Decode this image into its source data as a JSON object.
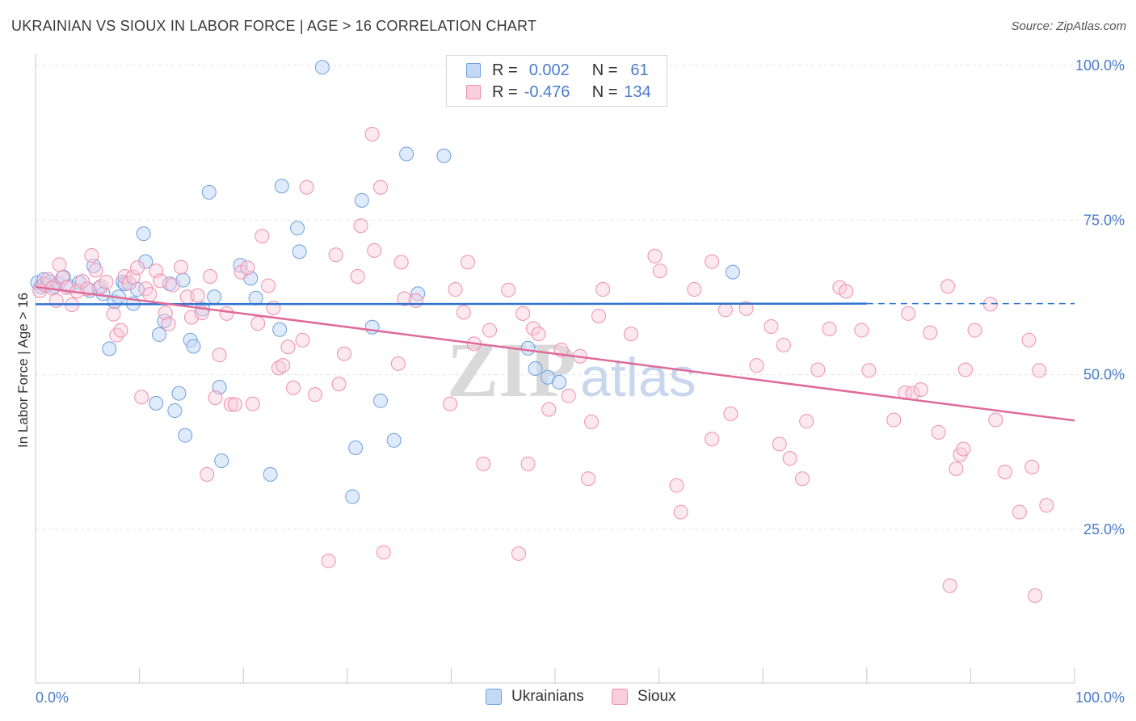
{
  "header": {
    "title": "UKRAINIAN VS SIOUX IN LABOR FORCE | AGE > 16 CORRELATION CHART",
    "source": "Source: ZipAtlas.com"
  },
  "watermark": {
    "zip": "ZIP",
    "atlas": "atlas"
  },
  "legend": {
    "rows": [
      {
        "r_label": "R =",
        "r_value": "0.002",
        "n_label": "N =",
        "n_value": "61",
        "color": "#6e9fe0"
      },
      {
        "r_label": "R =",
        "r_value": "-0.476",
        "n_label": "N =",
        "n_value": "134",
        "color": "#ee8eb0"
      }
    ]
  },
  "bottom_legend": {
    "items": [
      "Ukrainians",
      "Sioux"
    ]
  },
  "chart_data": {
    "type": "scatter",
    "title": "UKRAINIAN VS SIOUX IN LABOR FORCE | AGE > 16 CORRELATION CHART",
    "xlabel": "",
    "ylabel": "In Labor Force | Age > 16",
    "xlim": [
      0,
      100
    ],
    "ylim": [
      0,
      105
    ],
    "x_tick_labels": [
      "0.0%",
      "100.0%"
    ],
    "y_tick_labels": [
      "25.0%",
      "50.0%",
      "75.0%",
      "100.0%"
    ],
    "y_ticks": [
      25,
      50,
      75,
      100
    ],
    "grid": true,
    "legend_position": "top-center",
    "series": [
      {
        "name": "Ukrainians",
        "color": "#6e9fe0",
        "trend": {
          "x": [
            0,
            80
          ],
          "y": [
            61.4,
            61.5
          ],
          "dashed_extension_to": 100
        },
        "points": [
          [
            0.2,
            64.9
          ],
          [
            0.5,
            64.2
          ],
          [
            0.8,
            65.4
          ],
          [
            1.1,
            64.5
          ],
          [
            1.4,
            65.0
          ],
          [
            1.8,
            64.3
          ],
          [
            2.2,
            64.8
          ],
          [
            2.7,
            65.8
          ],
          [
            3.2,
            64.3
          ],
          [
            4.2,
            64.9
          ],
          [
            5.2,
            63.6
          ],
          [
            5.6,
            67.6
          ],
          [
            6.1,
            64.0
          ],
          [
            6.5,
            63.1
          ],
          [
            7.1,
            54.2
          ],
          [
            7.6,
            61.8
          ],
          [
            8.0,
            62.6
          ],
          [
            8.4,
            65.0
          ],
          [
            8.6,
            64.7
          ],
          [
            9.4,
            61.5
          ],
          [
            9.8,
            63.8
          ],
          [
            10.4,
            72.8
          ],
          [
            10.6,
            68.3
          ],
          [
            11.6,
            45.4
          ],
          [
            11.9,
            56.5
          ],
          [
            12.4,
            58.7
          ],
          [
            12.9,
            64.7
          ],
          [
            13.4,
            44.2
          ],
          [
            13.8,
            47.0
          ],
          [
            14.4,
            40.2
          ],
          [
            14.9,
            55.6
          ],
          [
            14.2,
            65.3
          ],
          [
            15.2,
            54.6
          ],
          [
            16.1,
            60.6
          ],
          [
            16.7,
            79.5
          ],
          [
            17.2,
            62.6
          ],
          [
            17.7,
            48.0
          ],
          [
            17.9,
            36.1
          ],
          [
            19.7,
            67.7
          ],
          [
            20.7,
            65.6
          ],
          [
            21.2,
            62.4
          ],
          [
            22.6,
            33.9
          ],
          [
            23.7,
            80.5
          ],
          [
            23.5,
            57.3
          ],
          [
            25.2,
            73.7
          ],
          [
            25.4,
            69.9
          ],
          [
            27.6,
            99.7
          ],
          [
            30.5,
            30.3
          ],
          [
            30.8,
            38.2
          ],
          [
            31.4,
            78.2
          ],
          [
            32.4,
            57.7
          ],
          [
            33.2,
            45.8
          ],
          [
            34.5,
            39.4
          ],
          [
            35.7,
            85.7
          ],
          [
            36.8,
            63.1
          ],
          [
            39.3,
            85.4
          ],
          [
            47.4,
            54.3
          ],
          [
            48.1,
            51.0
          ],
          [
            49.3,
            49.6
          ],
          [
            50.4,
            48.8
          ],
          [
            67.1,
            66.6
          ]
        ]
      },
      {
        "name": "Sioux",
        "color": "#ee8eb0",
        "trend": {
          "x": [
            0,
            100
          ],
          "y": [
            64.2,
            42.6
          ]
        },
        "points": [
          [
            0.4,
            63.6
          ],
          [
            0.8,
            64.6
          ],
          [
            1.2,
            65.4
          ],
          [
            1.6,
            64.0
          ],
          [
            2.0,
            62.0
          ],
          [
            2.3,
            67.8
          ],
          [
            2.6,
            65.7
          ],
          [
            3.0,
            64.1
          ],
          [
            3.5,
            61.3
          ],
          [
            4.0,
            63.5
          ],
          [
            4.5,
            65.1
          ],
          [
            5.0,
            63.9
          ],
          [
            5.4,
            69.3
          ],
          [
            5.8,
            66.9
          ],
          [
            6.3,
            64.3
          ],
          [
            6.8,
            65.0
          ],
          [
            7.5,
            59.8
          ],
          [
            7.8,
            56.4
          ],
          [
            8.2,
            57.2
          ],
          [
            8.6,
            65.9
          ],
          [
            9.0,
            64.8
          ],
          [
            9.4,
            65.8
          ],
          [
            9.8,
            67.3
          ],
          [
            10.2,
            46.4
          ],
          [
            10.6,
            63.9
          ],
          [
            11.0,
            63.0
          ],
          [
            11.6,
            66.8
          ],
          [
            12.0,
            65.2
          ],
          [
            12.5,
            60.0
          ],
          [
            12.8,
            58.2
          ],
          [
            13.2,
            64.5
          ],
          [
            14.0,
            67.4
          ],
          [
            14.6,
            62.6
          ],
          [
            15.0,
            59.3
          ],
          [
            15.6,
            62.8
          ],
          [
            16.0,
            60.0
          ],
          [
            16.5,
            33.9
          ],
          [
            16.8,
            65.9
          ],
          [
            17.3,
            46.3
          ],
          [
            17.7,
            53.2
          ],
          [
            18.4,
            59.9
          ],
          [
            18.8,
            45.2
          ],
          [
            19.2,
            45.2
          ],
          [
            19.8,
            66.6
          ],
          [
            20.4,
            67.3
          ],
          [
            20.9,
            45.3
          ],
          [
            21.4,
            58.3
          ],
          [
            21.8,
            72.4
          ],
          [
            22.4,
            64.4
          ],
          [
            22.9,
            60.8
          ],
          [
            23.4,
            51.1
          ],
          [
            23.8,
            51.5
          ],
          [
            24.3,
            54.5
          ],
          [
            24.8,
            47.9
          ],
          [
            25.7,
            55.6
          ],
          [
            26.1,
            80.3
          ],
          [
            26.9,
            46.8
          ],
          [
            28.2,
            19.9
          ],
          [
            28.9,
            69.4
          ],
          [
            29.2,
            48.5
          ],
          [
            29.7,
            53.4
          ],
          [
            31.0,
            65.9
          ],
          [
            31.3,
            74.1
          ],
          [
            32.4,
            88.9
          ],
          [
            32.6,
            70.1
          ],
          [
            33.2,
            80.3
          ],
          [
            33.5,
            21.3
          ],
          [
            34.9,
            51.8
          ],
          [
            35.2,
            68.2
          ],
          [
            35.5,
            62.3
          ],
          [
            36.6,
            62.0
          ],
          [
            39.9,
            45.3
          ],
          [
            40.4,
            63.8
          ],
          [
            41.2,
            60.1
          ],
          [
            41.6,
            68.2
          ],
          [
            42.2,
            55.0
          ],
          [
            43.1,
            35.6
          ],
          [
            43.7,
            57.2
          ],
          [
            45.5,
            63.7
          ],
          [
            46.5,
            21.1
          ],
          [
            46.9,
            59.9
          ],
          [
            47.4,
            35.6
          ],
          [
            47.9,
            57.5
          ],
          [
            48.4,
            56.6
          ],
          [
            49.4,
            44.4
          ],
          [
            50.6,
            54.0
          ],
          [
            51.3,
            46.6
          ],
          [
            52.4,
            53.0
          ],
          [
            53.2,
            33.2
          ],
          [
            53.5,
            42.4
          ],
          [
            54.2,
            59.5
          ],
          [
            54.6,
            63.8
          ],
          [
            57.3,
            56.6
          ],
          [
            59.6,
            69.2
          ],
          [
            60.1,
            66.8
          ],
          [
            61.7,
            32.1
          ],
          [
            62.1,
            27.8
          ],
          [
            63.4,
            63.8
          ],
          [
            65.1,
            39.6
          ],
          [
            65.1,
            68.3
          ],
          [
            66.4,
            60.5
          ],
          [
            66.9,
            43.7
          ],
          [
            68.4,
            60.7
          ],
          [
            69.4,
            51.5
          ],
          [
            70.8,
            57.8
          ],
          [
            71.6,
            38.8
          ],
          [
            72.0,
            54.8
          ],
          [
            72.6,
            36.5
          ],
          [
            73.8,
            33.2
          ],
          [
            74.2,
            42.5
          ],
          [
            75.3,
            50.8
          ],
          [
            76.4,
            57.4
          ],
          [
            77.4,
            64.1
          ],
          [
            78.0,
            63.5
          ],
          [
            79.5,
            57.2
          ],
          [
            80.2,
            50.7
          ],
          [
            82.6,
            42.7
          ],
          [
            83.7,
            47.1
          ],
          [
            84.0,
            59.9
          ],
          [
            84.4,
            47.0
          ],
          [
            85.2,
            47.6
          ],
          [
            86.1,
            56.8
          ],
          [
            86.9,
            40.7
          ],
          [
            87.8,
            64.3
          ],
          [
            88.6,
            34.8
          ],
          [
            89.0,
            37.1
          ],
          [
            89.3,
            38.0
          ],
          [
            89.5,
            50.8
          ],
          [
            90.4,
            57.2
          ],
          [
            91.9,
            61.4
          ],
          [
            92.4,
            42.7
          ],
          [
            93.3,
            34.3
          ],
          [
            94.7,
            27.8
          ],
          [
            95.6,
            55.6
          ],
          [
            95.9,
            35.1
          ],
          [
            96.2,
            14.3
          ],
          [
            96.6,
            50.7
          ],
          [
            97.3,
            28.9
          ],
          [
            88.0,
            15.9
          ]
        ]
      }
    ]
  }
}
